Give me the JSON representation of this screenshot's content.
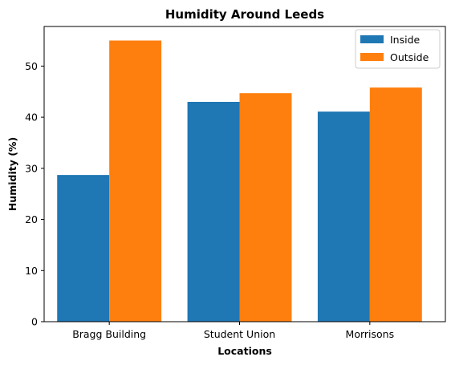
{
  "chart_data": {
    "type": "bar",
    "title": "Humidity Around Leeds",
    "xlabel": "Locations",
    "ylabel": "Humidity (%)",
    "categories": [
      "Bragg Building",
      "Student Union",
      "Morrisons"
    ],
    "series": [
      {
        "name": "Inside",
        "color": "#1f77b4",
        "values": [
          28.7,
          43.0,
          41.1
        ]
      },
      {
        "name": "Outside",
        "color": "#ff7f0e",
        "values": [
          55.0,
          44.7,
          45.8
        ]
      }
    ],
    "ylim": [
      0,
      57.75
    ],
    "yticks": [
      0,
      10,
      20,
      30,
      40,
      50
    ],
    "grid": false,
    "legend_position": "top-right"
  }
}
